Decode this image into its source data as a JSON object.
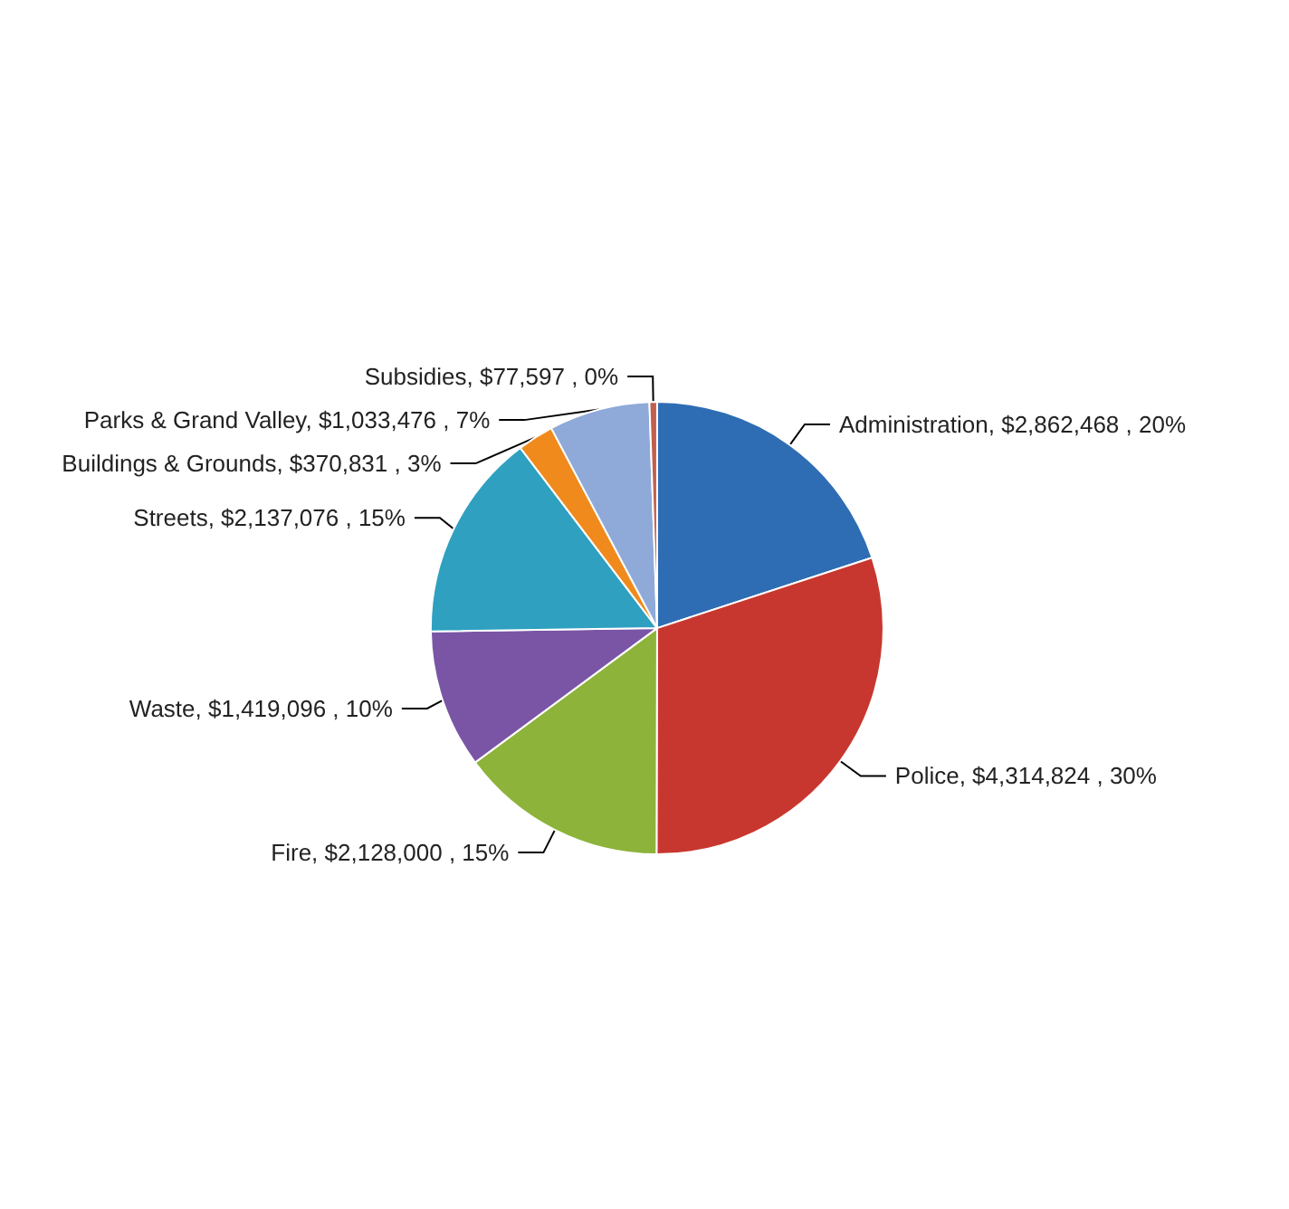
{
  "chart_data": {
    "type": "pie",
    "categories": [
      "Administration",
      "Police",
      "Fire",
      "Waste",
      "Streets",
      "Buildings & Grounds",
      "Parks & Grand Valley",
      "Subsidies"
    ],
    "values": [
      2862468,
      4314824,
      2128000,
      1419096,
      2137076,
      370831,
      1033476,
      77597
    ],
    "value_labels": [
      "$2,862,468 , 20%",
      "$4,314,824 , 30%",
      "$2,128,000 , 15%",
      "$1,419,096 , 10%",
      "$2,137,076 , 15%",
      "$370,831 , 3%",
      "$1,033,476 , 7%",
      "$77,597 , 0%"
    ],
    "colors": [
      "#2e6db4",
      "#c8372f",
      "#8db33a",
      "#7a55a5",
      "#2fa0bf",
      "#f08a1d",
      "#8faad8",
      "#c0604d"
    ],
    "legend": false
  }
}
